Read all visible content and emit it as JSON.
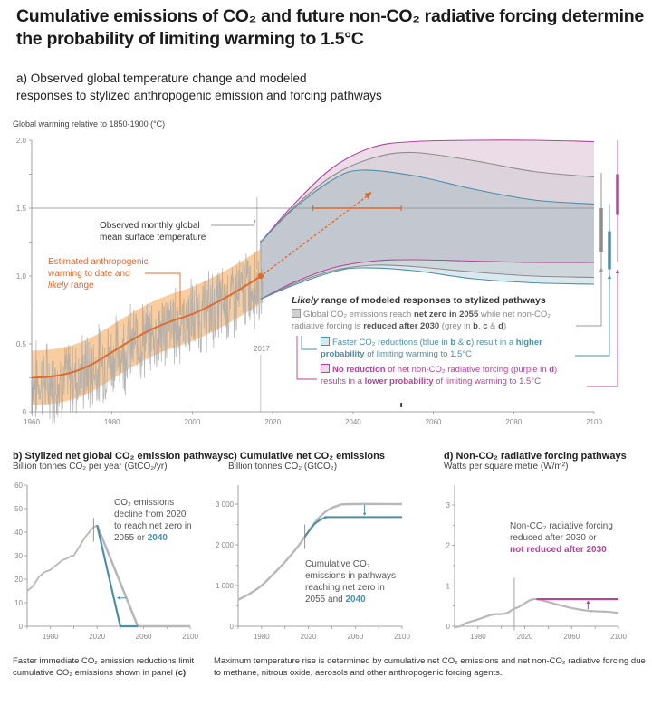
{
  "title": "Cumulative emissions of CO₂ and future non-CO₂ radiative forcing determine the probability of limiting warming to 1.5°C",
  "colors": {
    "orange": "#e06a2c",
    "orange_band": "#f8c48c",
    "observed_grey": "#aaaaaa",
    "grey_line": "#8c8c8c",
    "grey_band": "#c3c7cf",
    "blue": "#4a90a8",
    "blue_band": "#dbe8ed",
    "purple": "#b2469a",
    "purple_band": "#ecdce8"
  },
  "panel_a": {
    "title_line1": "a) Observed global temperature change and modeled",
    "title_line2": "responses to stylized anthropogenic emission and forcing pathways",
    "ylabel": "Global warming relative to 1850-1900 (°C)",
    "marker_year_label": "2017",
    "observed_label_line1": "Observed monthly global",
    "observed_label_line2": "mean surface temperature",
    "anthro_label_line1": "Estimated anthropogenic",
    "anthro_label_line2": "warming to date and",
    "anthro_label_line3_italic": "likely",
    "anthro_label_line3_rest": " range",
    "legend": {
      "heading_italic": "Likely",
      "heading_rest": " range of modeled responses to stylized pathways",
      "grey_pre": "Global CO₂ emissions reach ",
      "grey_bold1": "net zero in 2055",
      "grey_mid": " while net non-CO₂ radiative forcing is ",
      "grey_bold2": "reduced after 2030",
      "grey_post1": " (grey in ",
      "grey_b": "b",
      "grey_sep1": ", ",
      "grey_c": "c",
      "grey_sep2": " & ",
      "grey_d": "d",
      "grey_post2": ")",
      "blue_pre": "Faster CO₂ reductions (blue in ",
      "blue_b": "b",
      "blue_sep": " & ",
      "blue_c": "c",
      "blue_mid": ") result in a ",
      "blue_bold": "higher probability",
      "blue_post": " of limiting warming to 1.5°C",
      "purple_bold1": "No reduction",
      "purple_mid": " of net non-CO₂ radiative forcing (purple in ",
      "purple_d": "d",
      "purple_mid2": ") results in a ",
      "purple_bold2": "lower probability",
      "purple_post": " of limiting warming to 1.5°C"
    }
  },
  "panel_b": {
    "title": "b) Stylized net global CO₂ emission pathways",
    "subtitle": "Billion tonnes CO₂ per year (GtCO₂/yr)",
    "annotation_line1": "CO₂ emissions",
    "annotation_line2": "decline from 2020",
    "annotation_line3": "to reach net zero in",
    "annotation_line4_pre": "2055 or ",
    "annotation_line4_blue": "2040"
  },
  "panel_c": {
    "title": "c) Cumulative net CO₂ emissions",
    "subtitle": "Billion tonnes CO₂ (GtCO₂)",
    "annotation_line1": "Cumulative CO₂",
    "annotation_line2": "emissions in pathways",
    "annotation_line3": "reaching net zero in",
    "annotation_line4_pre": "2055 and ",
    "annotation_line4_blue": "2040"
  },
  "panel_d": {
    "title": "d) Non-CO₂ radiative forcing pathways",
    "subtitle": "Watts per square metre (W/m²)",
    "annotation_line1": "Non-CO₂ radiative forcing",
    "annotation_line2": "reduced after 2030 or",
    "annotation_line3_purple": "not reduced after 2030"
  },
  "footer": {
    "left_line": "Faster immediate CO₂ emission reductions limit cumulative CO₂ emissions shown in panel ",
    "left_bold": "(c)",
    "left_end": ".",
    "right": "Maximum temperature rise is determined by cumulative net CO₂ emissions and net non-CO₂ radiative forcing due to methane, nitrous oxide, aerosols and other anthropogenic forcing agents."
  },
  "chart_data": [
    {
      "id": "a",
      "type": "line",
      "title": "a) Observed global temperature change and modeled responses to stylized anthropogenic emission and forcing pathways",
      "xlabel": "",
      "ylabel": "Global warming relative to 1850-1900 (°C)",
      "xlim": [
        1960,
        2100
      ],
      "ylim": [
        0,
        2.0
      ],
      "xticks": [
        1960,
        1980,
        2000,
        2020,
        2040,
        2060,
        2080,
        2100
      ],
      "yticks": [
        0,
        0.5,
        1.0,
        1.5,
        2.0
      ],
      "ytick_labels": [
        "0",
        "0.5",
        "1.0",
        "1.5",
        "2.0"
      ],
      "reference_line": {
        "y": 1.5
      },
      "marker_year": 2017,
      "anthropogenic_warming": {
        "x": [
          1960,
          1965,
          1970,
          1975,
          1980,
          1985,
          1990,
          1995,
          2000,
          2005,
          2010,
          2015,
          2017
        ],
        "y": [
          0.25,
          0.26,
          0.29,
          0.35,
          0.44,
          0.53,
          0.61,
          0.67,
          0.72,
          0.79,
          0.87,
          0.96,
          1.0
        ],
        "band_half_width": 0.2
      },
      "observed_monthly_range": {
        "x": [
          1960,
          2017
        ],
        "min": -0.1,
        "max": 1.58
      },
      "projection_1_5_crossing_range": {
        "x_start": 2030,
        "x_end": 2052,
        "y": 1.5
      },
      "projection_arrow": {
        "from": [
          2017,
          1.0
        ],
        "to": [
          2044,
          1.6
        ]
      },
      "series": [
        {
          "name": "No non-CO2 reduction upper (purple)",
          "x": [
            2017,
            2025,
            2035,
            2045,
            2055,
            2070,
            2085,
            2100
          ],
          "y": [
            1.25,
            1.52,
            1.8,
            1.95,
            1.99,
            2.0,
            2.0,
            1.99
          ]
        },
        {
          "name": "Net zero 2055 upper (grey)",
          "x": [
            2017,
            2025,
            2035,
            2045,
            2055,
            2070,
            2085,
            2100
          ],
          "y": [
            1.25,
            1.5,
            1.74,
            1.87,
            1.91,
            1.85,
            1.77,
            1.73
          ]
        },
        {
          "name": "Faster CO2 reductions upper (blue)",
          "x": [
            2017,
            2025,
            2035,
            2042,
            2055,
            2070,
            2085,
            2100
          ],
          "y": [
            1.25,
            1.49,
            1.71,
            1.78,
            1.74,
            1.64,
            1.56,
            1.53
          ]
        },
        {
          "name": "No non-CO2 reduction lower (purple)",
          "x": [
            2017,
            2025,
            2035,
            2045,
            2055,
            2070,
            2085,
            2100
          ],
          "y": [
            0.83,
            0.95,
            1.06,
            1.11,
            1.12,
            1.11,
            1.1,
            1.1
          ]
        },
        {
          "name": "Net zero 2055 lower (grey)",
          "x": [
            2017,
            2025,
            2035,
            2045,
            2055,
            2070,
            2085,
            2100
          ],
          "y": [
            0.83,
            0.94,
            1.04,
            1.08,
            1.07,
            1.03,
            1.0,
            0.99
          ]
        },
        {
          "name": "Faster CO2 reductions lower (blue)",
          "x": [
            2017,
            2025,
            2035,
            2042,
            2055,
            2070,
            2085,
            2100
          ],
          "y": [
            0.83,
            0.93,
            1.03,
            1.06,
            1.04,
            0.98,
            0.95,
            0.94
          ]
        }
      ],
      "range_bars_2100": [
        {
          "name": "grey",
          "whisker": [
            0.97,
            1.76
          ],
          "likely": [
            1.18,
            1.5
          ]
        },
        {
          "name": "blue",
          "whisker": [
            0.93,
            1.53
          ],
          "likely": [
            1.05,
            1.33
          ]
        },
        {
          "name": "purple",
          "whisker": [
            1.1,
            2.0
          ],
          "likely": [
            1.45,
            1.75
          ]
        }
      ]
    },
    {
      "id": "b",
      "type": "line",
      "title": "b) Stylized net global CO₂ emission pathways",
      "ylabel": "Billion tonnes CO₂ per year (GtCO₂/yr)",
      "xlim": [
        1960,
        2100
      ],
      "ylim": [
        0,
        60
      ],
      "xticks": [
        1980,
        2020,
        2060,
        2100
      ],
      "yticks": [
        0,
        10,
        20,
        30,
        40,
        50,
        60
      ],
      "marker_year": 2017,
      "series": [
        {
          "name": "Historical",
          "x": [
            1960,
            1965,
            1970,
            1975,
            1980,
            1985,
            1990,
            1995,
            1998,
            2000,
            2005,
            2010,
            2015,
            2017,
            2020
          ],
          "y": [
            15,
            17,
            21,
            23,
            24,
            26,
            28,
            29,
            30,
            30,
            34,
            38,
            41,
            42,
            43
          ]
        },
        {
          "name": "Net zero 2055 (grey)",
          "x": [
            2020,
            2055,
            2100
          ],
          "y": [
            43,
            0,
            0
          ]
        },
        {
          "name": "Net zero 2040 (blue)",
          "x": [
            2020,
            2040,
            2055
          ],
          "y": [
            43,
            0,
            0
          ]
        }
      ]
    },
    {
      "id": "c",
      "type": "line",
      "title": "c) Cumulative net CO₂ emissions",
      "ylabel": "Billion tonnes CO₂ (GtCO₂)",
      "xlim": [
        1960,
        2100
      ],
      "ylim": [
        0,
        3500
      ],
      "xticks": [
        1980,
        2020,
        2060,
        2100
      ],
      "yticks": [
        0,
        1000,
        2000,
        3000
      ],
      "ytick_labels": [
        "0",
        "1 000",
        "2 000",
        "3 000"
      ],
      "marker_year": 2017,
      "series": [
        {
          "name": "Historical + net zero 2055 (grey)",
          "x": [
            1960,
            1970,
            1980,
            1990,
            2000,
            2010,
            2017,
            2025,
            2035,
            2045,
            2055,
            2100
          ],
          "y": [
            650,
            800,
            1000,
            1280,
            1580,
            1920,
            2200,
            2530,
            2820,
            2960,
            3000,
            3000
          ]
        },
        {
          "name": "Net zero 2040 (blue)",
          "x": [
            2017,
            2025,
            2030,
            2035,
            2040,
            2100
          ],
          "y": [
            2200,
            2500,
            2610,
            2670,
            2680,
            2680
          ]
        }
      ]
    },
    {
      "id": "d",
      "type": "line",
      "title": "d) Non-CO₂ radiative forcing pathways",
      "ylabel": "Watts per square metre (W/m²)",
      "xlim": [
        1960,
        2100
      ],
      "ylim": [
        0,
        3.5
      ],
      "xticks": [
        1980,
        2020,
        2060,
        2100
      ],
      "yticks": [
        0,
        1,
        2,
        3
      ],
      "marker_year": 2011,
      "series": [
        {
          "name": "Historical + reduced after 2030 (grey)",
          "x": [
            1960,
            1965,
            1970,
            1980,
            1990,
            1995,
            2000,
            2005,
            2010,
            2015,
            2020,
            2025,
            2030,
            2040,
            2050,
            2060,
            2075,
            2090,
            2100
          ],
          "y": [
            -0.02,
            0.0,
            0.08,
            0.17,
            0.27,
            0.3,
            0.3,
            0.33,
            0.42,
            0.48,
            0.57,
            0.65,
            0.67,
            0.6,
            0.52,
            0.45,
            0.38,
            0.36,
            0.33
          ]
        },
        {
          "name": "Not reduced after 2030 (purple)",
          "x": [
            2030,
            2100
          ],
          "y": [
            0.67,
            0.67
          ]
        }
      ]
    }
  ]
}
